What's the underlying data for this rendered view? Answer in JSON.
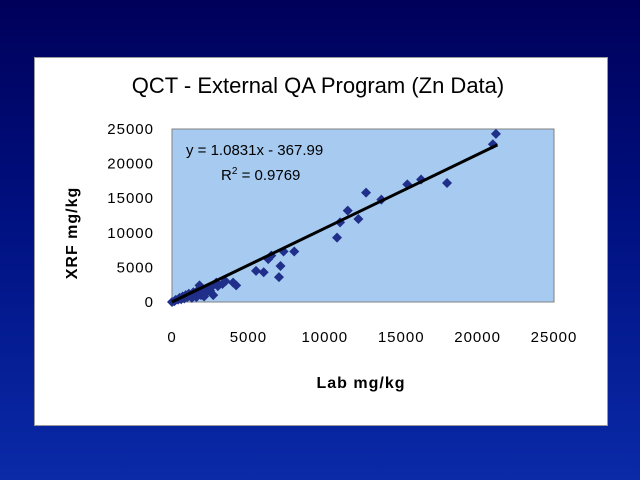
{
  "chart_data": {
    "type": "scatter",
    "title": "QCT - External QA Program (Zn Data)",
    "xlabel": "Lab mg/kg",
    "ylabel": "XRF mg/kg",
    "xlim": [
      0,
      25000
    ],
    "ylim": [
      0,
      25000
    ],
    "xticks": [
      "0",
      "5000",
      "10000",
      "15000",
      "20000",
      "25000"
    ],
    "yticks": [
      "0",
      "5000",
      "10000",
      "15000",
      "20000",
      "25000"
    ],
    "grid": false,
    "plot_background": "#a6caf0",
    "marker_color": "#1f2f8a",
    "trendline": {
      "slope": 1.0831,
      "intercept": -367.99,
      "equation": "y = 1.0831x - 367.99",
      "r2_prefix": "R",
      "r2_exp": "2",
      "r2_value": " = 0.9769",
      "color": "#000000"
    },
    "points": [
      [
        0,
        0
      ],
      [
        150,
        100
      ],
      [
        250,
        300
      ],
      [
        400,
        350
      ],
      [
        500,
        600
      ],
      [
        600,
        400
      ],
      [
        700,
        800
      ],
      [
        800,
        500
      ],
      [
        900,
        1000
      ],
      [
        1000,
        700
      ],
      [
        1100,
        1200
      ],
      [
        1200,
        900
      ],
      [
        1300,
        600
      ],
      [
        1400,
        1400
      ],
      [
        1500,
        1100
      ],
      [
        1600,
        700
      ],
      [
        1700,
        1700
      ],
      [
        1800,
        2400
      ],
      [
        1900,
        1000
      ],
      [
        2000,
        1500
      ],
      [
        2100,
        800
      ],
      [
        2200,
        1300
      ],
      [
        2300,
        1800
      ],
      [
        2500,
        1600
      ],
      [
        2600,
        2200
      ],
      [
        2700,
        1000
      ],
      [
        2900,
        2800
      ],
      [
        3000,
        2300
      ],
      [
        3300,
        2600
      ],
      [
        3500,
        3000
      ],
      [
        4000,
        2800
      ],
      [
        4200,
        2400
      ],
      [
        5500,
        4500
      ],
      [
        6000,
        4300
      ],
      [
        6300,
        6200
      ],
      [
        6500,
        6700
      ],
      [
        7000,
        3600
      ],
      [
        7100,
        5200
      ],
      [
        7300,
        7300
      ],
      [
        8000,
        7300
      ],
      [
        10800,
        9300
      ],
      [
        11000,
        11500
      ],
      [
        11500,
        13200
      ],
      [
        12200,
        12000
      ],
      [
        12700,
        15800
      ],
      [
        13700,
        14800
      ],
      [
        15400,
        17000
      ],
      [
        16300,
        17700
      ],
      [
        18000,
        17200
      ],
      [
        21000,
        22800
      ],
      [
        21200,
        24300
      ]
    ]
  }
}
